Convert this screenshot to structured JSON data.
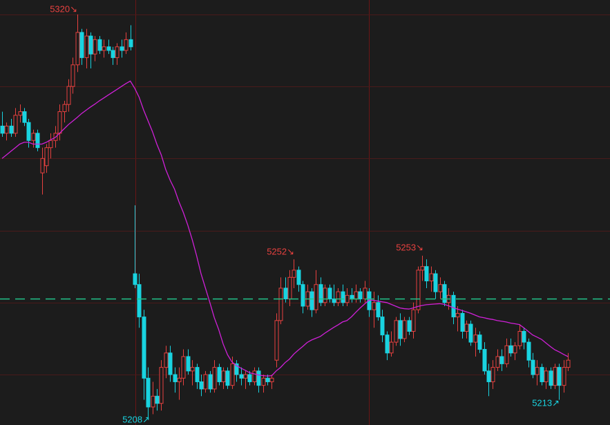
{
  "chart_data": {
    "type": "candlestick",
    "ylim": [
      5206,
      5324
    ],
    "yticks": [
      5220,
      5240,
      5260,
      5280,
      5300,
      5320
    ],
    "grid": true,
    "reference_line": 5241,
    "up_color": "#e8413f",
    "down_color": "#19d3e0",
    "ma_color": "#d020d8",
    "reference_color": "#22c38a",
    "open": [
      5289,
      5287,
      5289,
      5287,
      5292,
      5293,
      5290,
      5285,
      5287,
      5276,
      5278,
      5283,
      5285,
      5287,
      5293,
      5295,
      5300,
      5306,
      5315,
      5308,
      5314,
      5309,
      5313,
      5310,
      5311,
      5310,
      5308,
      5311,
      5310,
      5313,
      5248,
      5245,
      5236,
      5219,
      5211,
      5214,
      5212,
      5222,
      5226,
      5220,
      5218,
      5219,
      5225,
      5221,
      5222,
      5218,
      5216,
      5220,
      5216,
      5222,
      5218,
      5221,
      5217,
      5223,
      5220,
      5219,
      5220,
      5218,
      5221,
      5217,
      5219,
      5218,
      5224,
      5235,
      5244,
      5241,
      5247,
      5249,
      5245,
      5239,
      5243,
      5238,
      5245,
      5240,
      5244,
      5241,
      5240,
      5243,
      5240,
      5242,
      5241,
      5243,
      5241,
      5243,
      5238,
      5240,
      5236,
      5231,
      5226,
      5229,
      5235,
      5230,
      5235,
      5232,
      5238,
      5249,
      5250,
      5246,
      5248,
      5243,
      5245,
      5240,
      5242,
      5236,
      5237,
      5232,
      5234,
      5229,
      5231,
      5227,
      5221,
      5218,
      5222,
      5225,
      5223,
      5228,
      5226,
      5228,
      5232,
      5229,
      5224,
      5220,
      5222,
      5218,
      5221,
      5217,
      5222,
      5217,
      5222
    ],
    "high": [
      5293,
      5290,
      5291,
      5294,
      5295,
      5294,
      5291,
      5288,
      5288,
      5283,
      5284,
      5287,
      5289,
      5295,
      5296,
      5302,
      5308,
      5320,
      5316,
      5316,
      5315,
      5314,
      5314,
      5313,
      5313,
      5311,
      5312,
      5313,
      5315,
      5317,
      5267,
      5248,
      5238,
      5222,
      5218,
      5216,
      5224,
      5228,
      5228,
      5222,
      5222,
      5227,
      5227,
      5224,
      5223,
      5220,
      5221,
      5221,
      5224,
      5223,
      5222,
      5222,
      5225,
      5224,
      5222,
      5221,
      5221,
      5222,
      5222,
      5220,
      5220,
      5220,
      5237,
      5247,
      5247,
      5249,
      5252,
      5250,
      5246,
      5245,
      5244,
      5249,
      5247,
      5245,
      5245,
      5245,
      5244,
      5245,
      5244,
      5244,
      5245,
      5244,
      5246,
      5244,
      5243,
      5242,
      5238,
      5232,
      5232,
      5236,
      5237,
      5236,
      5236,
      5240,
      5250,
      5253,
      5252,
      5250,
      5249,
      5247,
      5246,
      5244,
      5243,
      5239,
      5238,
      5235,
      5235,
      5233,
      5232,
      5229,
      5223,
      5224,
      5227,
      5227,
      5230,
      5230,
      5229,
      5234,
      5233,
      5230,
      5226,
      5224,
      5223,
      5222,
      5222,
      5223,
      5223,
      5224,
      5226
    ],
    "low": [
      5286,
      5285,
      5286,
      5286,
      5290,
      5289,
      5283,
      5283,
      5282,
      5270,
      5276,
      5280,
      5283,
      5285,
      5290,
      5293,
      5298,
      5304,
      5306,
      5305,
      5305,
      5307,
      5309,
      5308,
      5309,
      5306,
      5306,
      5308,
      5309,
      5310,
      5244,
      5233,
      5213,
      5208,
      5209,
      5210,
      5210,
      5219,
      5218,
      5215,
      5213,
      5217,
      5220,
      5217,
      5216,
      5214,
      5215,
      5215,
      5215,
      5217,
      5216,
      5216,
      5216,
      5218,
      5217,
      5216,
      5217,
      5217,
      5215,
      5215,
      5217,
      5216,
      5222,
      5234,
      5240,
      5239,
      5244,
      5243,
      5237,
      5238,
      5236,
      5237,
      5239,
      5239,
      5240,
      5239,
      5239,
      5239,
      5239,
      5240,
      5240,
      5240,
      5240,
      5236,
      5233,
      5235,
      5229,
      5224,
      5225,
      5228,
      5228,
      5229,
      5231,
      5230,
      5237,
      5246,
      5244,
      5243,
      5241,
      5241,
      5239,
      5238,
      5234,
      5232,
      5230,
      5230,
      5228,
      5225,
      5226,
      5220,
      5214,
      5216,
      5221,
      5221,
      5222,
      5225,
      5224,
      5227,
      5227,
      5222,
      5219,
      5217,
      5217,
      5216,
      5216,
      5216,
      5213,
      5215,
      5221
    ],
    "close": [
      5287,
      5289,
      5287,
      5292,
      5293,
      5290,
      5285,
      5287,
      5283,
      5280,
      5283,
      5285,
      5287,
      5293,
      5295,
      5300,
      5306,
      5315,
      5308,
      5314,
      5309,
      5313,
      5310,
      5311,
      5310,
      5308,
      5311,
      5310,
      5313,
      5311,
      5245,
      5236,
      5219,
      5211,
      5214,
      5212,
      5222,
      5226,
      5220,
      5218,
      5219,
      5225,
      5221,
      5222,
      5218,
      5216,
      5220,
      5216,
      5222,
      5218,
      5221,
      5217,
      5223,
      5220,
      5219,
      5220,
      5218,
      5221,
      5217,
      5219,
      5218,
      5219,
      5235,
      5244,
      5241,
      5247,
      5249,
      5245,
      5239,
      5243,
      5238,
      5245,
      5240,
      5244,
      5241,
      5240,
      5243,
      5240,
      5242,
      5241,
      5243,
      5241,
      5244,
      5238,
      5240,
      5236,
      5231,
      5226,
      5229,
      5235,
      5230,
      5235,
      5232,
      5238,
      5249,
      5250,
      5246,
      5248,
      5243,
      5245,
      5240,
      5242,
      5236,
      5237,
      5232,
      5234,
      5229,
      5231,
      5227,
      5221,
      5218,
      5222,
      5225,
      5223,
      5228,
      5226,
      5228,
      5232,
      5229,
      5224,
      5220,
      5222,
      5218,
      5221,
      5217,
      5222,
      5217,
      5222,
      5224
    ],
    "ma": [
      5280,
      5281,
      5282,
      5283,
      5284,
      5284.5,
      5284.5,
      5284,
      5284,
      5284,
      5284.5,
      5285.2,
      5285.8,
      5287,
      5288.2,
      5289.4,
      5290.4,
      5291.4,
      5292.5,
      5293.4,
      5294.3,
      5295.1,
      5296,
      5296.8,
      5297.6,
      5298.4,
      5299.2,
      5300,
      5300.8,
      5301.5,
      5299.5,
      5297,
      5293.5,
      5290.5,
      5287.5,
      5284,
      5281,
      5277,
      5274,
      5271.5,
      5268,
      5265,
      5261.5,
      5257.5,
      5253,
      5248,
      5244,
      5240,
      5235.8,
      5232.5,
      5228.5,
      5225.5,
      5223.5,
      5222.5,
      5221.8,
      5221.2,
      5220.5,
      5220.2,
      5219.9,
      5219.7,
      5219.6,
      5219.7,
      5221,
      5222,
      5223.3,
      5224.3,
      5225.7,
      5226.8,
      5227.8,
      5228.9,
      5229.6,
      5230.1,
      5230.6,
      5231.5,
      5232.3,
      5233.1,
      5233.8,
      5234.6,
      5235,
      5236,
      5237.3,
      5238.5,
      5239.6,
      5240.7,
      5240.6,
      5240.4,
      5240.2,
      5240,
      5239.5,
      5239,
      5238.5,
      5238.3,
      5238.2,
      5238.5,
      5238.9,
      5239.2,
      5239.4,
      5239.5,
      5239.6,
      5239.7,
      5239.5,
      5239.1,
      5238.6,
      5238.2,
      5237.8,
      5237.4,
      5237,
      5236.5,
      5236,
      5235.8,
      5235.5,
      5235.3,
      5235,
      5234.8,
      5234.6,
      5234.3,
      5234.1,
      5233.9,
      5233,
      5232,
      5231,
      5230.4,
      5229.8,
      5228.8,
      5227.8,
      5226.9,
      5226.3,
      5225.6,
      5225
    ],
    "annotations": [
      "5320↘",
      "5208↗",
      "5252↘",
      "5253↘",
      "5213↗"
    ]
  }
}
